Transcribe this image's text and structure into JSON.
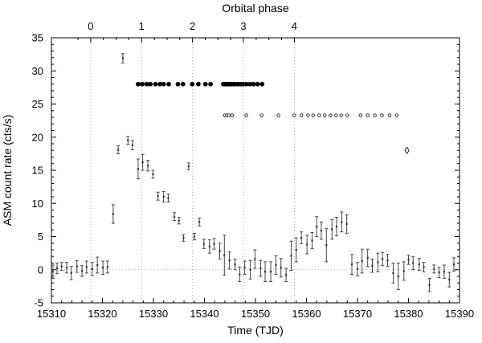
{
  "chart_data": {
    "type": "scatter",
    "xlabel": "Time (TJD)",
    "ylabel": "ASM count rate (cts/s)",
    "x2label": "Orbital phase",
    "xlim": [
      15310,
      15390
    ],
    "ylim": [
      -5,
      35
    ],
    "xticks": [
      "15310",
      "15320",
      "15330",
      "15340",
      "15350",
      "15360",
      "15370",
      "15380",
      "15390"
    ],
    "yticks": [
      "-5",
      "0",
      "5",
      "10",
      "15",
      "20",
      "25",
      "30",
      "35"
    ],
    "phase_ticks": [
      "0",
      "1",
      "2",
      "3",
      "4"
    ],
    "phase_zero_tjd": 15317.7,
    "orbital_period_days": 9.98,
    "grid": "dotted lines at integer orbital phases and y = 0",
    "series": [
      {
        "marker": "cross-with-errorbar",
        "x": [
          15310.3,
          15311.1,
          15312.0,
          15313.0,
          15313.9,
          15315.0,
          15316.0,
          15316.9,
          15318.0,
          15319.0,
          15320.1,
          15321.0,
          15322.1,
          15323.1,
          15324.0,
          15325.0,
          15325.9,
          15327.0,
          15327.9,
          15328.9,
          15329.9,
          15330.9,
          15332.0,
          15332.9,
          15334.1,
          15335.0,
          15335.9,
          15336.9,
          15338.0,
          15339.0,
          15339.9,
          15341.0,
          15341.9,
          15343.0,
          15343.9,
          15344.9,
          15346.0,
          15346.9,
          15347.9,
          15349.0,
          15349.9,
          15351.0,
          15351.9,
          15353.0,
          15354.0,
          15355.0,
          15356.0,
          15357.0,
          15358.0,
          15359.0,
          15360.1,
          15361.1,
          15362.0,
          15362.9,
          15363.9,
          15365.0,
          15365.9,
          15366.9,
          15367.9,
          15368.9,
          15370.0,
          15370.9,
          15372.0,
          15372.9,
          15374.0,
          15374.9,
          15375.9,
          15377.0,
          15378.0,
          15379.1,
          15380.0,
          15380.9,
          15382.1,
          15383.0,
          15384.1,
          15385.0,
          15386.0,
          15387.0,
          15388.0,
          15388.9
        ],
        "y": [
          -0.3,
          0.2,
          0.5,
          0.3,
          -0.5,
          0.5,
          -0.2,
          0.4,
          0.1,
          0.7,
          0.3,
          0.4,
          8.4,
          18.1,
          31.9,
          19.5,
          18.8,
          15.2,
          16.2,
          15.7,
          14.4,
          11.1,
          11.0,
          10.8,
          8.0,
          7.4,
          4.8,
          15.6,
          5.0,
          7.2,
          3.9,
          3.5,
          3.9,
          2.8,
          2.2,
          1.4,
          0.8,
          -0.7,
          0.3,
          0.0,
          1.6,
          0.2,
          -0.3,
          -0.3,
          0.7,
          0.3,
          -0.8,
          2.1,
          3.0,
          4.8,
          3.8,
          4.4,
          6.5,
          5.9,
          3.7,
          6.1,
          6.5,
          7.2,
          6.9,
          0.8,
          0.1,
          1.3,
          1.8,
          0.6,
          1.1,
          1.6,
          1.4,
          -0.5,
          -1.0,
          -0.2,
          1.5,
          1.0,
          0.8,
          0.4,
          -2.3,
          0.1,
          -0.4,
          -0.3,
          -1.5,
          0.8
        ],
        "yerr": [
          1.0,
          0.8,
          0.6,
          0.8,
          1.0,
          0.9,
          0.8,
          0.9,
          1.0,
          1.2,
          1.0,
          0.9,
          1.4,
          0.6,
          0.7,
          0.6,
          0.7,
          1.5,
          1.2,
          0.8,
          0.6,
          0.6,
          0.8,
          0.6,
          0.6,
          0.5,
          0.5,
          0.5,
          0.5,
          0.6,
          0.7,
          1.0,
          0.8,
          1.2,
          3.0,
          1.3,
          0.8,
          1.1,
          1.0,
          1.4,
          1.4,
          1.2,
          1.5,
          1.5,
          1.4,
          1.4,
          1.0,
          2.2,
          1.8,
          0.9,
          1.4,
          1.2,
          1.5,
          1.3,
          2.5,
          1.5,
          1.4,
          1.5,
          1.4,
          1.5,
          1.0,
          1.8,
          1.3,
          1.0,
          1.4,
          1.0,
          0.9,
          1.5,
          2.0,
          1.4,
          0.7,
          1.0,
          0.9,
          0.7,
          1.0,
          0.6,
          0.8,
          1.0,
          1.1,
          1.0
        ]
      },
      {
        "marker": "filled-circle",
        "x": [
          15327.0,
          15327.8,
          15328.7,
          15329.4,
          15330.4,
          15331.3,
          15332.0,
          15333.0,
          15334.8,
          15335.8,
          15337.6,
          15338.8,
          15340.2,
          15341.2,
          15343.7,
          15344.0,
          15344.3,
          15344.6,
          15344.9,
          15345.3,
          15345.7,
          15346.1,
          15346.6,
          15347.1,
          15347.6,
          15348.2,
          15348.9,
          15349.6,
          15350.4,
          15351.3
        ],
        "y": [
          28,
          28,
          28,
          28,
          28,
          28,
          28,
          28,
          28,
          28,
          28,
          28,
          28,
          28,
          28,
          28,
          28,
          28,
          28,
          28,
          28,
          28,
          28,
          28,
          28,
          28,
          28,
          28,
          28,
          28
        ]
      },
      {
        "marker": "open-circle",
        "x": [
          15344.0,
          15344.4,
          15344.8,
          15345.4,
          15348.2,
          15351.2,
          15354.5,
          15357.6,
          15359.0,
          15360.3,
          15361.3,
          15362.5,
          15363.6,
          15364.7,
          15365.8,
          15366.8,
          15368.0,
          15370.6,
          15372.0,
          15373.4,
          15374.8,
          15376.3,
          15377.7
        ],
        "y": [
          23.3,
          23.3,
          23.3,
          23.3,
          23.3,
          23.3,
          23.3,
          23.3,
          23.3,
          23.3,
          23.3,
          23.3,
          23.3,
          23.3,
          23.3,
          23.3,
          23.3,
          23.3,
          23.3,
          23.3,
          23.3,
          23.3,
          23.3
        ]
      },
      {
        "marker": "open-diamond",
        "x": [
          15379.7
        ],
        "y": [
          18.0
        ]
      }
    ]
  }
}
